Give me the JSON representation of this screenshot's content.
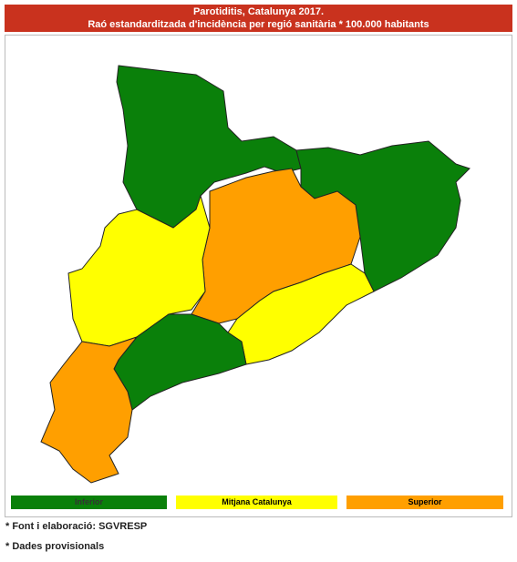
{
  "header": {
    "title": "Parotiditis, Catalunya 2017.",
    "subtitle": "Raó estandarditzada d'incidència per regió sanitària * 100.000 habitants"
  },
  "legend": [
    {
      "label": "Inferior",
      "color": "#0a800a"
    },
    {
      "label": "Mitjana Catalunya",
      "color": "#ffff00"
    },
    {
      "label": "Superior",
      "color": "#ff9f00"
    }
  ],
  "notes": [
    "* Font i elaboració: SGVRESP",
    "* Dades provisionals"
  ]
}
